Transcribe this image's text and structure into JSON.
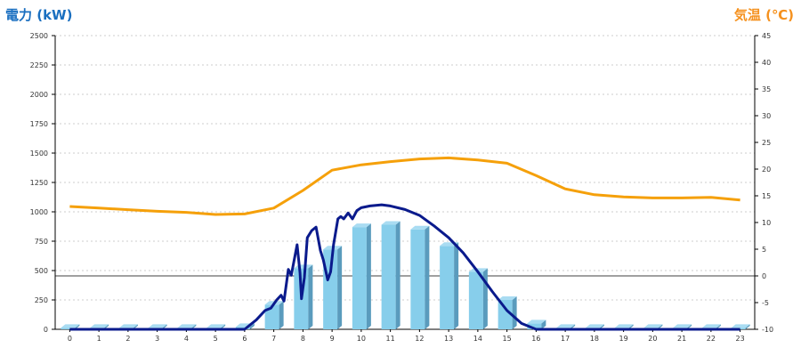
{
  "chart_data": {
    "type": "bar+line",
    "left_axis_title": "電力 (kW)",
    "right_axis_title": "気温 (℃)",
    "left_title_color": "#1a6fc0",
    "right_title_color": "#f5911e",
    "categories": [
      "0",
      "1",
      "2",
      "3",
      "4",
      "5",
      "6",
      "7",
      "8",
      "9",
      "10",
      "11",
      "12",
      "13",
      "14",
      "15",
      "16",
      "17",
      "18",
      "19",
      "20",
      "21",
      "22",
      "23"
    ],
    "y_left": {
      "min": 0,
      "max": 2500,
      "ticks": [
        0,
        250,
        500,
        750,
        1000,
        1250,
        1500,
        1750,
        2000,
        2250,
        2500
      ]
    },
    "y_right": {
      "min": -10,
      "max": 45,
      "ticks": [
        -10,
        -5,
        0,
        5,
        10,
        15,
        20,
        25,
        30,
        35,
        40,
        45
      ]
    },
    "grid": "horizontal dashed",
    "bar_series": {
      "axis": "left",
      "color": "#87ceeb",
      "values": [
        0,
        0,
        0,
        0,
        0,
        0,
        20,
        210,
        520,
        680,
        870,
        890,
        850,
        710,
        490,
        250,
        50,
        0,
        0,
        0,
        0,
        0,
        0,
        0
      ]
    },
    "temperature_series": {
      "axis": "right",
      "color": "#f5a00a",
      "values": [
        13.0,
        12.7,
        12.4,
        12.1,
        11.9,
        11.5,
        11.6,
        12.7,
        16.0,
        19.8,
        20.8,
        21.4,
        21.9,
        22.1,
        21.7,
        21.1,
        18.8,
        16.3,
        15.2,
        14.8,
        14.6,
        14.6,
        14.7,
        14.2
      ]
    },
    "power_series": {
      "axis": "left",
      "color": "#0a1a8c",
      "points": [
        [
          0,
          0
        ],
        [
          1,
          0
        ],
        [
          2,
          0
        ],
        [
          3,
          0
        ],
        [
          4,
          0
        ],
        [
          5,
          0
        ],
        [
          6,
          0
        ],
        [
          6.4,
          80
        ],
        [
          6.7,
          160
        ],
        [
          6.9,
          180
        ],
        [
          7.1,
          250
        ],
        [
          7.25,
          290
        ],
        [
          7.35,
          240
        ],
        [
          7.5,
          510
        ],
        [
          7.6,
          460
        ],
        [
          7.8,
          720
        ],
        [
          7.9,
          480
        ],
        [
          7.95,
          260
        ],
        [
          8.05,
          440
        ],
        [
          8.15,
          780
        ],
        [
          8.3,
          840
        ],
        [
          8.45,
          870
        ],
        [
          8.6,
          670
        ],
        [
          8.7,
          590
        ],
        [
          8.85,
          420
        ],
        [
          8.95,
          490
        ],
        [
          9.05,
          720
        ],
        [
          9.2,
          940
        ],
        [
          9.3,
          960
        ],
        [
          9.4,
          940
        ],
        [
          9.55,
          990
        ],
        [
          9.7,
          940
        ],
        [
          9.85,
          1010
        ],
        [
          10.0,
          1035
        ],
        [
          10.3,
          1050
        ],
        [
          10.7,
          1060
        ],
        [
          11.0,
          1050
        ],
        [
          11.5,
          1020
        ],
        [
          12.0,
          970
        ],
        [
          12.5,
          880
        ],
        [
          13.0,
          780
        ],
        [
          13.5,
          650
        ],
        [
          14.0,
          490
        ],
        [
          14.5,
          320
        ],
        [
          15.0,
          160
        ],
        [
          15.5,
          50
        ],
        [
          16.0,
          0
        ],
        [
          17,
          0
        ],
        [
          18,
          0
        ],
        [
          19,
          0
        ],
        [
          20,
          0
        ],
        [
          21,
          0
        ],
        [
          22,
          0
        ],
        [
          23,
          0
        ]
      ]
    }
  }
}
